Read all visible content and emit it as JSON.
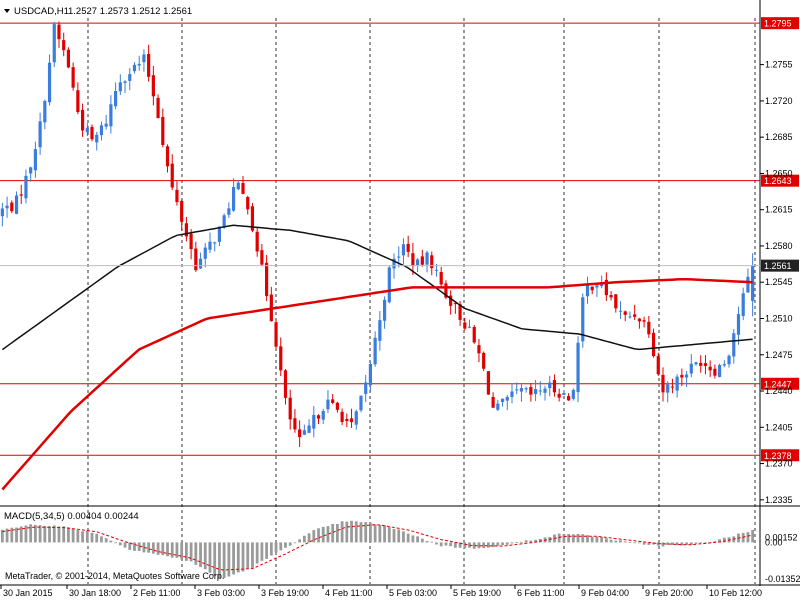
{
  "header": {
    "symbol": "USDCAD,H1",
    "ohlc": "1.2527 1.2573 1.2512 1.2561"
  },
  "colors": {
    "background": "#ffffff",
    "up_candle": "#3b7ddd",
    "down_candle": "#e00000",
    "level": "#e00000",
    "ma_fast": "#111111",
    "ma_slow": "#e00000",
    "macd_bar": "#9a9a9a",
    "macd_signal": "#e00000",
    "current_price_box": "#222222",
    "grid": "#000000"
  },
  "price_scale": {
    "ticks": [
      "1.2755",
      "1.2720",
      "1.2685",
      "1.2650",
      "1.2615",
      "1.2580",
      "1.2545",
      "1.2510",
      "1.2475",
      "1.2440",
      "1.2405",
      "1.2370",
      "1.2335"
    ]
  },
  "levels": [
    "1.2795",
    "1.2643",
    "1.2447",
    "1.2378"
  ],
  "current_price": "1.2561",
  "macd": {
    "title": "MACD(5,34,5) 0.00404 0.00244",
    "ticks": [
      "0.00152",
      "0.00",
      "-0.01352"
    ]
  },
  "copyright": "MetaTrader, © 2001-2014, MetaQuotes Software Corp.",
  "time_axis": {
    "labels": [
      "30 Jan 2015",
      "30 Jan 18:00",
      "2 Feb 11:00",
      "3 Feb 03:00",
      "3 Feb 19:00",
      "4 Feb 11:00",
      "5 Feb 03:00",
      "5 Feb 19:00",
      "6 Feb 11:00",
      "9 Feb 04:00",
      "9 Feb 20:00",
      "10 Feb 12:00"
    ]
  },
  "chart_data": {
    "type": "candlestick",
    "symbol": "USDCAD",
    "timeframe": "H1",
    "ylim": [
      1.233,
      1.28
    ],
    "close_path": [
      1.2615,
      1.262,
      1.265,
      1.27,
      1.279,
      1.276,
      1.27,
      1.268,
      1.27,
      1.274,
      1.275,
      1.276,
      1.271,
      1.264,
      1.26,
      1.256,
      1.258,
      1.26,
      1.264,
      1.262,
      1.256,
      1.25,
      1.242,
      1.239,
      1.241,
      1.243,
      1.242,
      1.2405,
      1.244,
      1.25,
      1.256,
      1.258,
      1.256,
      1.257,
      1.254,
      1.252,
      1.25,
      1.247,
      1.242,
      1.243,
      1.244,
      1.2435,
      1.2445,
      1.244,
      1.243,
      1.254,
      1.2545,
      1.253,
      1.251,
      1.2515,
      1.25,
      1.244,
      1.245,
      1.246,
      1.247,
      1.246,
      1.247,
      1.252,
      1.2561
    ],
    "ma_fast": [
      1.248,
      1.252,
      1.256,
      1.259,
      1.26,
      1.2595,
      1.2585,
      1.256,
      1.252,
      1.25,
      1.2495,
      1.248,
      1.2485,
      1.249
    ],
    "ma_slow": [
      1.2345,
      1.242,
      1.248,
      1.251,
      1.252,
      1.253,
      1.254,
      1.254,
      1.254,
      1.2545,
      1.2548,
      1.2545
    ],
    "macd_hist": [
      0.004,
      0.006,
      0.005,
      0.003,
      -0.002,
      -0.004,
      -0.006,
      -0.012,
      -0.008,
      -0.002,
      0.004,
      0.007,
      0.006,
      0.003,
      -0.001,
      -0.002,
      -0.001,
      0.001,
      0.003,
      0.002,
      0.0,
      -0.001,
      -0.001,
      0.001,
      0.004
    ],
    "macd_signal": [
      0.0035,
      0.005,
      0.0048,
      0.0035,
      0.0,
      -0.003,
      -0.005,
      -0.009,
      -0.0085,
      -0.004,
      0.001,
      0.005,
      0.0058,
      0.004,
      0.001,
      -0.001,
      -0.0012,
      0.0,
      0.002,
      0.002,
      0.0008,
      -0.0004,
      -0.0008,
      0.0002,
      0.0024
    ],
    "macd_ylim": [
      -0.0135,
      0.0115
    ],
    "grid": true
  }
}
